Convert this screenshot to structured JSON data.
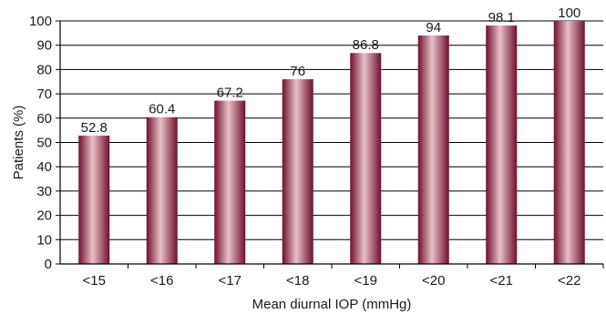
{
  "chart_data": {
    "type": "bar",
    "title": "",
    "xlabel": "Mean diurnal IOP (mmHg)",
    "ylabel": "Patients (%)",
    "categories": [
      "<15",
      "<16",
      "<17",
      "<18",
      "<19",
      "<20",
      "<21",
      "<22"
    ],
    "values": [
      52.8,
      60.4,
      67.2,
      76,
      86.8,
      94,
      98.1,
      100
    ],
    "data_labels": [
      "52.8",
      "60.4",
      "67.2",
      "76",
      "86.8",
      "94",
      "98.1",
      "100"
    ],
    "ylim": [
      0,
      100
    ],
    "yticks": [
      0,
      10,
      20,
      30,
      40,
      50,
      60,
      70,
      80,
      90,
      100
    ],
    "grid": true,
    "legend": "none",
    "colors": {
      "bar_dark": "#6e0f2d",
      "bar_light": "#e9c0c8",
      "axis": "#000000",
      "grid": "#000000"
    }
  }
}
